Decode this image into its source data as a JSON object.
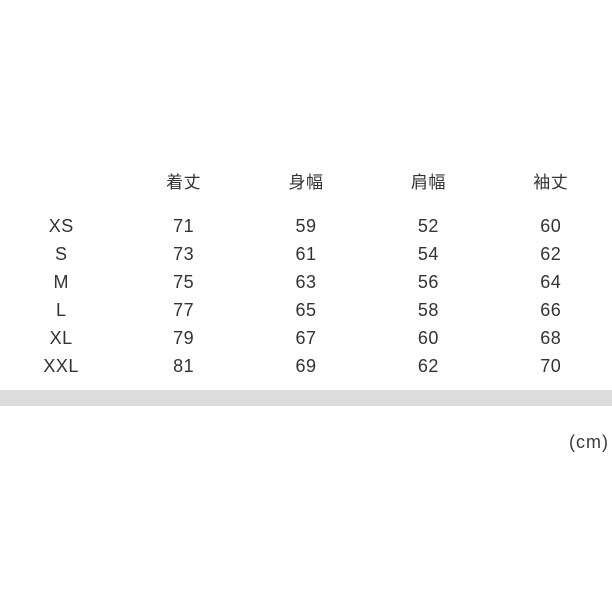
{
  "chart_data": {
    "type": "table",
    "title": "",
    "unit_label": "(cm)",
    "row_header_label": "",
    "columns": [
      "着丈",
      "身幅",
      "肩幅",
      "袖丈"
    ],
    "rows": [
      {
        "size": "XS",
        "values": [
          71,
          59,
          52,
          60
        ]
      },
      {
        "size": "S",
        "values": [
          73,
          61,
          54,
          62
        ]
      },
      {
        "size": "M",
        "values": [
          75,
          63,
          56,
          64
        ]
      },
      {
        "size": "L",
        "values": [
          77,
          65,
          58,
          66
        ]
      },
      {
        "size": "XL",
        "values": [
          79,
          67,
          60,
          68
        ]
      },
      {
        "size": "XXL",
        "values": [
          81,
          69,
          62,
          70
        ]
      }
    ],
    "layout": {
      "grid": "off",
      "column_alignment": "center",
      "divider_bar_full_width": true
    }
  },
  "colors": {
    "background": "#ffffff",
    "text": "#333333",
    "divider_bar": "#dcdcdc"
  }
}
